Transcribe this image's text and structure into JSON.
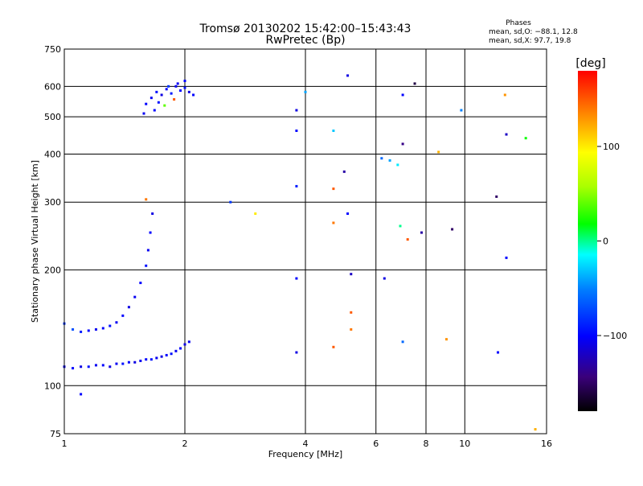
{
  "chart_data": {
    "type": "scatter",
    "title": "Tromsø 20130202 15:42:00–15:43:43",
    "subtitle": "RwPretec (Bp)",
    "xlabel": "Frequency [MHz]",
    "ylabel": "Stationary phase Virtual Height [km]",
    "xscale": "log",
    "yscale": "log",
    "xlim": [
      1,
      16
    ],
    "ylim": [
      75,
      750
    ],
    "x_ticks": [
      1,
      2,
      4,
      6,
      8,
      10,
      16
    ],
    "y_ticks": [
      75,
      100,
      200,
      300,
      400,
      500,
      600,
      750
    ],
    "grid": true,
    "stats": {
      "title": "Phases",
      "line_o": "mean, sd,O: −88.1, 12.8",
      "line_x": "mean, sd,X:  97.7, 19.8"
    },
    "colorbar": {
      "label": "[deg]",
      "range": [
        -180,
        180
      ],
      "ticks": [
        {
          "value": 100,
          "label": "100"
        },
        {
          "value": 0,
          "label": "0"
        },
        {
          "value": -100,
          "label": "−100"
        }
      ]
    },
    "series": [
      {
        "points": [
          [
            1.0,
            112,
            -105
          ],
          [
            1.05,
            111,
            -100
          ],
          [
            1.1,
            112,
            -110
          ],
          [
            1.15,
            112,
            -95
          ],
          [
            1.2,
            113,
            -105
          ],
          [
            1.25,
            113,
            -100
          ],
          [
            1.3,
            112,
            -110
          ],
          [
            1.35,
            114,
            -105
          ],
          [
            1.4,
            114,
            -95
          ],
          [
            1.45,
            115,
            -100
          ],
          [
            1.5,
            115,
            -110
          ],
          [
            1.55,
            116,
            -105
          ],
          [
            1.6,
            117,
            -100
          ],
          [
            1.65,
            117,
            -95
          ],
          [
            1.7,
            118,
            -105
          ],
          [
            1.75,
            119,
            -110
          ],
          [
            1.8,
            120,
            -100
          ],
          [
            1.85,
            121,
            -95
          ],
          [
            1.9,
            123,
            -105
          ],
          [
            1.95,
            125,
            -100
          ],
          [
            2.0,
            128,
            -110
          ],
          [
            2.05,
            130,
            -105
          ],
          [
            1.0,
            145,
            -80
          ],
          [
            1.05,
            140,
            -70
          ],
          [
            1.1,
            138,
            -90
          ],
          [
            1.15,
            139,
            -100
          ],
          [
            1.2,
            140,
            -105
          ],
          [
            1.25,
            141,
            -100
          ],
          [
            1.3,
            143,
            -95
          ],
          [
            1.35,
            146,
            -105
          ],
          [
            1.4,
            152,
            -100
          ],
          [
            1.45,
            160,
            -110
          ],
          [
            1.5,
            170,
            -105
          ],
          [
            1.55,
            185,
            -100
          ],
          [
            1.6,
            205,
            -95
          ],
          [
            1.62,
            225,
            -105
          ],
          [
            1.64,
            250,
            -100
          ],
          [
            1.66,
            280,
            -110
          ],
          [
            1.6,
            540,
            -100
          ],
          [
            1.65,
            560,
            -105
          ],
          [
            1.7,
            580,
            -95
          ],
          [
            1.75,
            570,
            -110
          ],
          [
            1.8,
            590,
            -100
          ],
          [
            1.85,
            575,
            -90
          ],
          [
            1.9,
            600,
            -105
          ],
          [
            1.95,
            585,
            -100
          ],
          [
            2.0,
            595,
            -95
          ],
          [
            2.05,
            580,
            -110
          ],
          [
            2.1,
            570,
            -100
          ],
          [
            1.58,
            510,
            -105
          ],
          [
            1.68,
            520,
            -100
          ],
          [
            1.72,
            545,
            -95
          ],
          [
            1.82,
            600,
            -80
          ],
          [
            1.92,
            610,
            -105
          ],
          [
            2.0,
            620,
            -100
          ],
          [
            1.78,
            535,
            40
          ],
          [
            1.88,
            555,
            150
          ],
          [
            1.1,
            95,
            -100
          ],
          [
            1.6,
            305,
            140
          ],
          [
            2.6,
            300,
            -80
          ],
          [
            3.0,
            280,
            100
          ],
          [
            3.8,
            520,
            -110
          ],
          [
            3.8,
            460,
            -100
          ],
          [
            3.8,
            330,
            -90
          ],
          [
            3.8,
            190,
            -100
          ],
          [
            3.8,
            122,
            -110
          ],
          [
            4.0,
            580,
            -40
          ],
          [
            4.7,
            460,
            -30
          ],
          [
            4.7,
            325,
            150
          ],
          [
            4.7,
            265,
            140
          ],
          [
            4.7,
            126,
            150
          ],
          [
            5.0,
            360,
            -130
          ],
          [
            5.1,
            640,
            -110
          ],
          [
            5.1,
            280,
            -100
          ],
          [
            5.2,
            195,
            -120
          ],
          [
            5.2,
            155,
            150
          ],
          [
            5.2,
            140,
            140
          ],
          [
            6.2,
            390,
            -60
          ],
          [
            6.3,
            190,
            -110
          ],
          [
            6.5,
            385,
            -40
          ],
          [
            6.8,
            375,
            -20
          ],
          [
            6.9,
            260,
            0
          ],
          [
            7.0,
            570,
            -100
          ],
          [
            7.0,
            425,
            -140
          ],
          [
            7.0,
            130,
            -60
          ],
          [
            7.2,
            240,
            150
          ],
          [
            7.5,
            610,
            -160
          ],
          [
            7.8,
            250,
            -130
          ],
          [
            8.6,
            405,
            120
          ],
          [
            9.0,
            132,
            130
          ],
          [
            9.3,
            255,
            -150
          ],
          [
            9.8,
            520,
            -50
          ],
          [
            12.0,
            310,
            -150
          ],
          [
            12.1,
            122,
            -100
          ],
          [
            12.6,
            570,
            130
          ],
          [
            12.7,
            450,
            -120
          ],
          [
            12.7,
            215,
            -100
          ],
          [
            14.2,
            440,
            20
          ],
          [
            15.0,
            77,
            120
          ]
        ]
      }
    ]
  }
}
